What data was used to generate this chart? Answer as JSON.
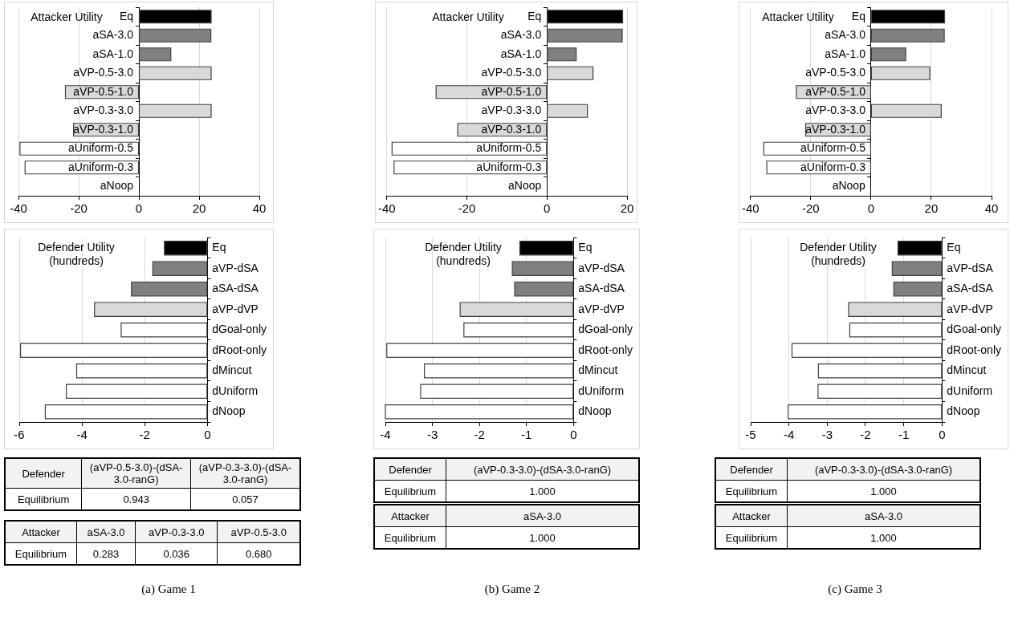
{
  "chart_data": [
    {
      "type": "bar",
      "orientation": "horizontal",
      "title": "Attacker Utility",
      "categories": [
        "Eq",
        "aSA-3.0",
        "aSA-1.0",
        "aVP-0.5-3.0",
        "aVP-0.5-1.0",
        "aVP-0.3-3.0",
        "aVP-0.3-1.0",
        "aUniform-0.5",
        "aUniform-0.3",
        "aNoop"
      ],
      "values": [
        24.0,
        23.9,
        10.6,
        24.0,
        -24.4,
        24.0,
        -21.7,
        -39.5,
        -37.8,
        0
      ],
      "colors": [
        "#000000",
        "#808080",
        "#808080",
        "#d9d9d9",
        "#d9d9d9",
        "#d9d9d9",
        "#d9d9d9",
        "#ffffff",
        "#ffffff",
        "#ffffff"
      ],
      "xlim": [
        -40,
        40
      ],
      "xticks": [
        -40,
        -20,
        0,
        20,
        40
      ],
      "grid": "x"
    },
    {
      "type": "bar",
      "orientation": "horizontal",
      "title": "Attacker Utility",
      "categories": [
        "Eq",
        "aSA-3.0",
        "aSA-1.0",
        "aVP-0.5-3.0",
        "aVP-0.5-1.0",
        "aVP-0.3-3.0",
        "aVP-0.3-1.0",
        "aUniform-0.5",
        "aUniform-0.3",
        "aNoop"
      ],
      "values": [
        18.9,
        18.8,
        7.3,
        11.5,
        -27.7,
        10.1,
        -22.3,
        -38.7,
        -38.2,
        0
      ],
      "colors": [
        "#000000",
        "#808080",
        "#808080",
        "#d9d9d9",
        "#d9d9d9",
        "#d9d9d9",
        "#d9d9d9",
        "#ffffff",
        "#ffffff",
        "#ffffff"
      ],
      "xlim": [
        -40,
        20
      ],
      "xticks": [
        -40,
        -20,
        0,
        20
      ],
      "grid": "x"
    },
    {
      "type": "bar",
      "orientation": "horizontal",
      "title": "Attacker Utility",
      "categories": [
        "Eq",
        "aSA-3.0",
        "aSA-1.0",
        "aVP-0.5-3.0",
        "aVP-0.5-1.0",
        "aVP-0.3-3.0",
        "aVP-0.3-1.0",
        "aUniform-0.5",
        "aUniform-0.3",
        "aNoop"
      ],
      "values": [
        24.4,
        24.3,
        11.5,
        19.5,
        -24.8,
        23.3,
        -21.7,
        -35.6,
        -34.6,
        0
      ],
      "colors": [
        "#000000",
        "#808080",
        "#808080",
        "#d9d9d9",
        "#d9d9d9",
        "#d9d9d9",
        "#d9d9d9",
        "#ffffff",
        "#ffffff",
        "#ffffff"
      ],
      "xlim": [
        -40,
        40
      ],
      "xticks": [
        -40,
        -20,
        0,
        20,
        40
      ],
      "grid": "x"
    },
    {
      "type": "bar",
      "orientation": "horizontal",
      "title": "Defender Utility (hundreds)",
      "categories": [
        "Eq",
        "aVP-dSA",
        "aSA-dSA",
        "aVP-dVP",
        "dGoal-only",
        "dRoot-only",
        "dMincut",
        "dUniform",
        "dNoop"
      ],
      "values": [
        -1.37,
        -1.74,
        -2.42,
        -3.6,
        -2.75,
        -5.96,
        -4.17,
        -4.5,
        -5.17
      ],
      "colors": [
        "#000000",
        "#808080",
        "#808080",
        "#d9d9d9",
        "#ffffff",
        "#ffffff",
        "#ffffff",
        "#ffffff",
        "#ffffff"
      ],
      "xlim": [
        -6,
        0
      ],
      "xticks": [
        -6,
        -4,
        -2,
        0
      ],
      "grid": "x"
    },
    {
      "type": "bar",
      "orientation": "horizontal",
      "title": "Defender Utility (hundreds)",
      "categories": [
        "Eq",
        "aVP-dSA",
        "aSA-dSA",
        "aVP-dVP",
        "dGoal-only",
        "dRoot-only",
        "dMincut",
        "dUniform",
        "dNoop"
      ],
      "values": [
        -1.14,
        -1.3,
        -1.25,
        -2.41,
        -2.33,
        -3.97,
        -3.17,
        -3.25,
        -4.0
      ],
      "colors": [
        "#000000",
        "#808080",
        "#808080",
        "#d9d9d9",
        "#ffffff",
        "#ffffff",
        "#ffffff",
        "#ffffff",
        "#ffffff"
      ],
      "xlim": [
        -4,
        0
      ],
      "xticks": [
        -4,
        -3,
        -2,
        -1,
        0
      ],
      "grid": "x"
    },
    {
      "type": "bar",
      "orientation": "horizontal",
      "title": "Defender Utility (hundreds)",
      "categories": [
        "Eq",
        "aVP-dSA",
        "aSA-dSA",
        "aVP-dVP",
        "dGoal-only",
        "dRoot-only",
        "dMincut",
        "dUniform",
        "dNoop"
      ],
      "values": [
        -1.15,
        -1.3,
        -1.26,
        -2.44,
        -2.41,
        -3.92,
        -3.23,
        -3.24,
        -4.02
      ],
      "colors": [
        "#000000",
        "#808080",
        "#808080",
        "#d9d9d9",
        "#ffffff",
        "#ffffff",
        "#ffffff",
        "#ffffff",
        "#ffffff"
      ],
      "xlim": [
        -5,
        0
      ],
      "xticks": [
        -5,
        -4,
        -3,
        -2,
        -1,
        0
      ],
      "grid": "x"
    },
    {
      "type": "other",
      "title": "Defender",
      "ylabel": "Equilibrium",
      "categories": [
        "(aVP-0.5-3.0)-(dSA-3.0-ranG)",
        "(aVP-0.3-3.0)-(dSA-3.0-ranG)"
      ],
      "values": [
        0.943,
        0.057
      ],
      "value_labels": [
        "0.943",
        "0.057"
      ]
    },
    {
      "type": "other",
      "title": "Defender",
      "ylabel": "Equilibrium",
      "categories": [
        "(aVP-0.3-3.0)-(dSA-3.0-ranG)"
      ],
      "values": [
        1
      ],
      "value_labels": [
        "1.000"
      ]
    },
    {
      "type": "other",
      "title": "Defender",
      "ylabel": "Equilibrium",
      "categories": [
        "(aVP-0.3-3.0)-(dSA-3.0-ranG)"
      ],
      "values": [
        1
      ],
      "value_labels": [
        "1.000"
      ]
    },
    {
      "type": "other",
      "title": "Attacker",
      "ylabel": "Equilibrium",
      "categories": [
        "aSA-3.0",
        "aVP-0.3-3.0",
        "aVP-0.5-3.0"
      ],
      "values": [
        0.283,
        0.036,
        0.68
      ],
      "value_labels": [
        "0.283",
        "0.036",
        "0.680"
      ],
      "annotations": [
        "(a)  Game 1"
      ]
    },
    {
      "type": "other",
      "title": "Attacker",
      "ylabel": "Equilibrium",
      "categories": [
        "aSA-3.0"
      ],
      "values": [
        1
      ],
      "value_labels": [
        "1.000"
      ],
      "annotations": [
        "(b)  Game 2"
      ]
    },
    {
      "type": "other",
      "title": "Attacker",
      "ylabel": "Equilibrium",
      "categories": [
        "aSA-3.0"
      ],
      "values": [
        1
      ],
      "value_labels": [
        "1.000"
      ],
      "annotations": [
        "(c)  Game 3"
      ]
    }
  ]
}
